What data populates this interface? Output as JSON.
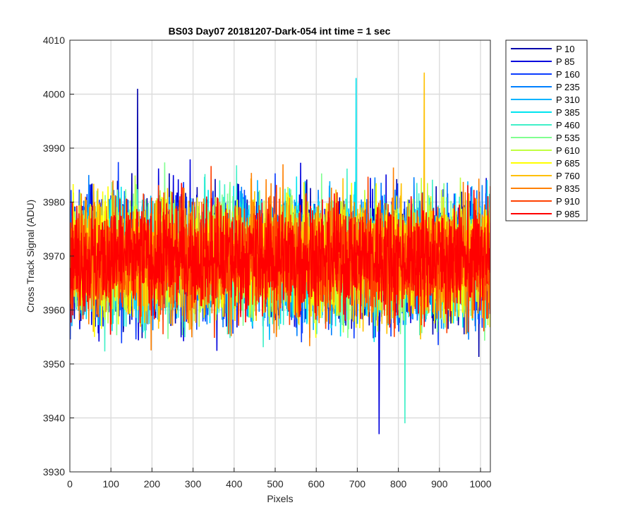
{
  "chart_data": {
    "type": "line",
    "title": "BS03 Day07 20181207-Dark-054 int time = 1 sec",
    "xlabel": "Pixels",
    "ylabel": "Cross Track Signal (ADU)",
    "xlim": [
      0,
      1024
    ],
    "ylim": [
      3930,
      4010
    ],
    "xticks": [
      0,
      100,
      200,
      300,
      400,
      500,
      600,
      700,
      800,
      900,
      1000
    ],
    "yticks": [
      3930,
      3940,
      3950,
      3960,
      3970,
      3980,
      3990,
      4000,
      4010
    ],
    "grid": true,
    "legend_position": "outside-right-top",
    "x_range": [
      1,
      1024
    ],
    "series": [
      {
        "name": "P 10",
        "color": "#0000aa",
        "mean": 3969.5,
        "spread": 8.0
      },
      {
        "name": "P 85",
        "color": "#0000dd",
        "mean": 3969.8,
        "spread": 8.0
      },
      {
        "name": "P 160",
        "color": "#0a3cff",
        "mean": 3969.4,
        "spread": 7.8
      },
      {
        "name": "P 235",
        "color": "#0080ff",
        "mean": 3969.6,
        "spread": 7.8
      },
      {
        "name": "P 310",
        "color": "#00b4ff",
        "mean": 3969.7,
        "spread": 7.8
      },
      {
        "name": "P 385",
        "color": "#00e4f0",
        "mean": 3969.5,
        "spread": 7.8
      },
      {
        "name": "P 460",
        "color": "#40f0c8",
        "mean": 3969.6,
        "spread": 7.6
      },
      {
        "name": "P 535",
        "color": "#80ff90",
        "mean": 3969.8,
        "spread": 7.6
      },
      {
        "name": "P 610",
        "color": "#c0ff40",
        "mean": 3969.9,
        "spread": 7.6
      },
      {
        "name": "P 685",
        "color": "#ffff00",
        "mean": 3969.7,
        "spread": 7.6
      },
      {
        "name": "P 760",
        "color": "#ffc000",
        "mean": 3969.6,
        "spread": 7.6
      },
      {
        "name": "P 835",
        "color": "#ff8000",
        "mean": 3969.8,
        "spread": 7.6
      },
      {
        "name": "P 910",
        "color": "#ff4000",
        "mean": 3969.6,
        "spread": 7.4
      },
      {
        "name": "P 985",
        "color": "#ff0000",
        "mean": 3969.7,
        "spread": 7.0
      }
    ],
    "annotated_extremes": [
      {
        "x": 165,
        "y": 4001
      },
      {
        "x": 697,
        "y": 4003
      },
      {
        "x": 863,
        "y": 4004
      },
      {
        "x": 753,
        "y": 3937
      },
      {
        "x": 816,
        "y": 3939
      }
    ]
  }
}
